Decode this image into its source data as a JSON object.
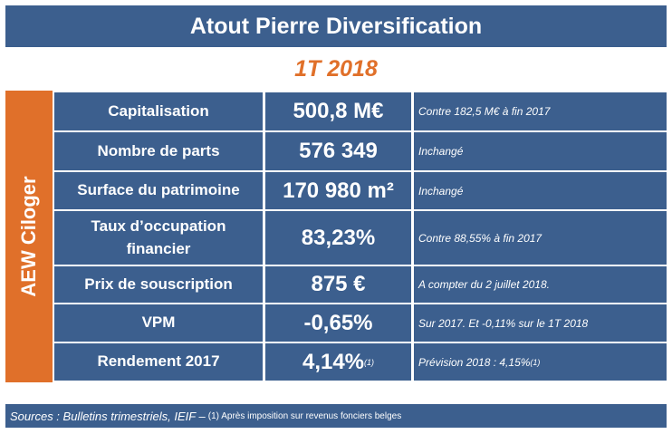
{
  "header": {
    "title": "Atout Pierre Diversification",
    "period": "1T 2018",
    "side_label": "AEW Ciloger"
  },
  "table": {
    "rows": [
      {
        "label": "Capitalisation",
        "value": "500,8 M€",
        "note": "Contre 182,5 M€ à fin 2017"
      },
      {
        "label": "Nombre de parts",
        "value": "576 349",
        "note": "Inchangé"
      },
      {
        "label": "Surface du patrimoine",
        "value": "170 980 m²",
        "note": "Inchangé"
      },
      {
        "label": "Taux d’occupation financier",
        "value": "83,23%",
        "note": "Contre 88,55% à fin 2017"
      },
      {
        "label": "Prix de souscription",
        "value": "875 €",
        "note": "A compter du 2 juillet 2018."
      },
      {
        "label": "VPM",
        "value": "-0,65%",
        "note": "Sur 2017. Et -0,11% sur le 1T 2018"
      },
      {
        "label": "Rendement 2017",
        "value": "4,14%",
        "value_sup": "(1)",
        "note": "Prévision 2018 : 4,15%",
        "note_sup": "(1)"
      }
    ]
  },
  "footer": {
    "sources": "Sources : Bulletins trimestriels, IEIF –",
    "footnote": "(1) Après imposition sur revenus fonciers belges"
  }
}
